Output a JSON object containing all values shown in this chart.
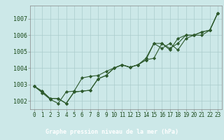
{
  "title": "Graphe pression niveau de la mer (hPa)",
  "bg_color": "#cce8e8",
  "plot_bg_color": "#cce8e8",
  "label_bg_color": "#2d6e2d",
  "label_text_color": "#ffffff",
  "grid_color": "#aacccc",
  "line_color": "#2d5a2d",
  "marker_color": "#2d5a2d",
  "xlim": [
    -0.5,
    23.5
  ],
  "ylim": [
    1001.5,
    1007.8
  ],
  "xticks": [
    0,
    1,
    2,
    3,
    4,
    5,
    6,
    7,
    8,
    9,
    10,
    11,
    12,
    13,
    14,
    15,
    16,
    17,
    18,
    19,
    20,
    21,
    22,
    23
  ],
  "yticks": [
    1002,
    1003,
    1004,
    1005,
    1006,
    1007
  ],
  "series": [
    [
      1002.9,
      1002.5,
      1002.1,
      1001.85,
      1002.55,
      1002.6,
      1003.4,
      1003.5,
      1003.55,
      1003.8,
      1004.0,
      1004.2,
      1004.05,
      1004.2,
      1004.6,
      1005.5,
      1005.5,
      1005.1,
      1005.8,
      1006.0,
      1006.0,
      1006.2,
      1006.3,
      1007.35
    ],
    [
      1002.9,
      1002.6,
      1002.15,
      1002.15,
      1001.85,
      1002.55,
      1002.6,
      1002.65,
      1003.35,
      1003.55,
      1004.0,
      1004.2,
      1004.05,
      1004.2,
      1004.5,
      1005.5,
      1005.2,
      1005.5,
      1005.1,
      1005.8,
      1006.0,
      1006.0,
      1006.3,
      1007.35
    ],
    [
      1002.9,
      1002.55,
      1002.15,
      1002.15,
      1001.85,
      1002.55,
      1002.6,
      1002.65,
      1003.35,
      1003.55,
      1004.0,
      1004.2,
      1004.05,
      1004.2,
      1004.5,
      1004.6,
      1005.5,
      1005.2,
      1005.5,
      1006.0,
      1006.0,
      1006.2,
      1006.3,
      1007.35
    ]
  ],
  "tick_fontsize": 5.5,
  "label_fontsize": 6.0,
  "linewidth": 0.8,
  "markersize": 2.2
}
